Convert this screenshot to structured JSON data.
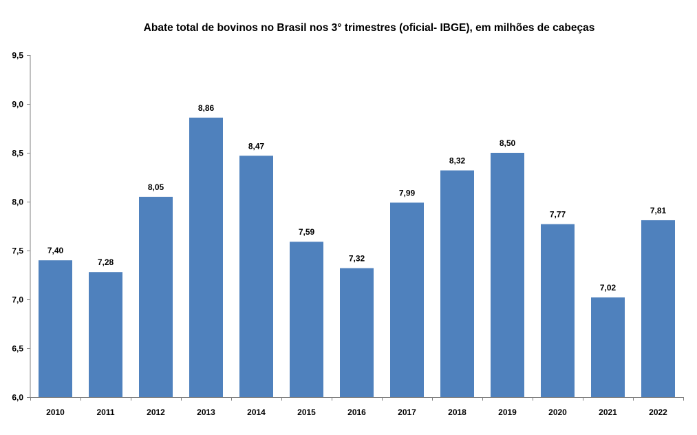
{
  "chart_data": {
    "type": "bar",
    "title": "Abate total de bovinos no Brasil nos 3° trimestres (oficial- IBGE), em milhões de cabeças",
    "xlabel": "",
    "ylabel": "",
    "categories": [
      "2010",
      "2011",
      "2012",
      "2013",
      "2014",
      "2015",
      "2016",
      "2017",
      "2018",
      "2019",
      "2020",
      "2021",
      "2022"
    ],
    "values": [
      7.4,
      7.28,
      8.05,
      8.86,
      8.47,
      7.59,
      7.32,
      7.99,
      8.32,
      8.5,
      7.77,
      7.02,
      7.81
    ],
    "data_labels": [
      "7,40",
      "7,28",
      "8,05",
      "8,86",
      "8,47",
      "7,59",
      "7,32",
      "7,99",
      "8,32",
      "8,50",
      "7,77",
      "7,02",
      "7,81"
    ],
    "ylim": [
      6.0,
      9.5
    ],
    "yticks": [
      6.0,
      6.5,
      7.0,
      7.5,
      8.0,
      8.5,
      9.0,
      9.5
    ],
    "ytick_labels": [
      "6,0",
      "6,5",
      "7,0",
      "7,5",
      "8,0",
      "8,5",
      "9,0",
      "9,5"
    ],
    "grid": false,
    "legend": "none",
    "bar_color": "#4f81bd"
  }
}
